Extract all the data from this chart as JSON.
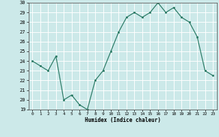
{
  "x": [
    0,
    1,
    2,
    3,
    4,
    5,
    6,
    7,
    8,
    9,
    10,
    11,
    12,
    13,
    14,
    15,
    16,
    17,
    18,
    19,
    20,
    21,
    22,
    23
  ],
  "y": [
    24.0,
    23.5,
    23.0,
    24.5,
    20.0,
    20.5,
    19.5,
    19.0,
    22.0,
    23.0,
    25.0,
    27.0,
    28.5,
    29.0,
    28.5,
    29.0,
    30.0,
    29.0,
    29.5,
    28.5,
    28.0,
    26.5,
    23.0,
    22.5
  ],
  "xlabel": "Humidex (Indice chaleur)",
  "ylim": [
    19,
    30
  ],
  "xlim": [
    -0.5,
    23.5
  ],
  "yticks": [
    19,
    20,
    21,
    22,
    23,
    24,
    25,
    26,
    27,
    28,
    29,
    30
  ],
  "xticks": [
    0,
    1,
    2,
    3,
    4,
    5,
    6,
    7,
    8,
    9,
    10,
    11,
    12,
    13,
    14,
    15,
    16,
    17,
    18,
    19,
    20,
    21,
    22,
    23
  ],
  "line_color": "#2a7a65",
  "marker_color": "#2a7a65",
  "bg_color": "#cce9e9",
  "grid_color": "#ffffff"
}
